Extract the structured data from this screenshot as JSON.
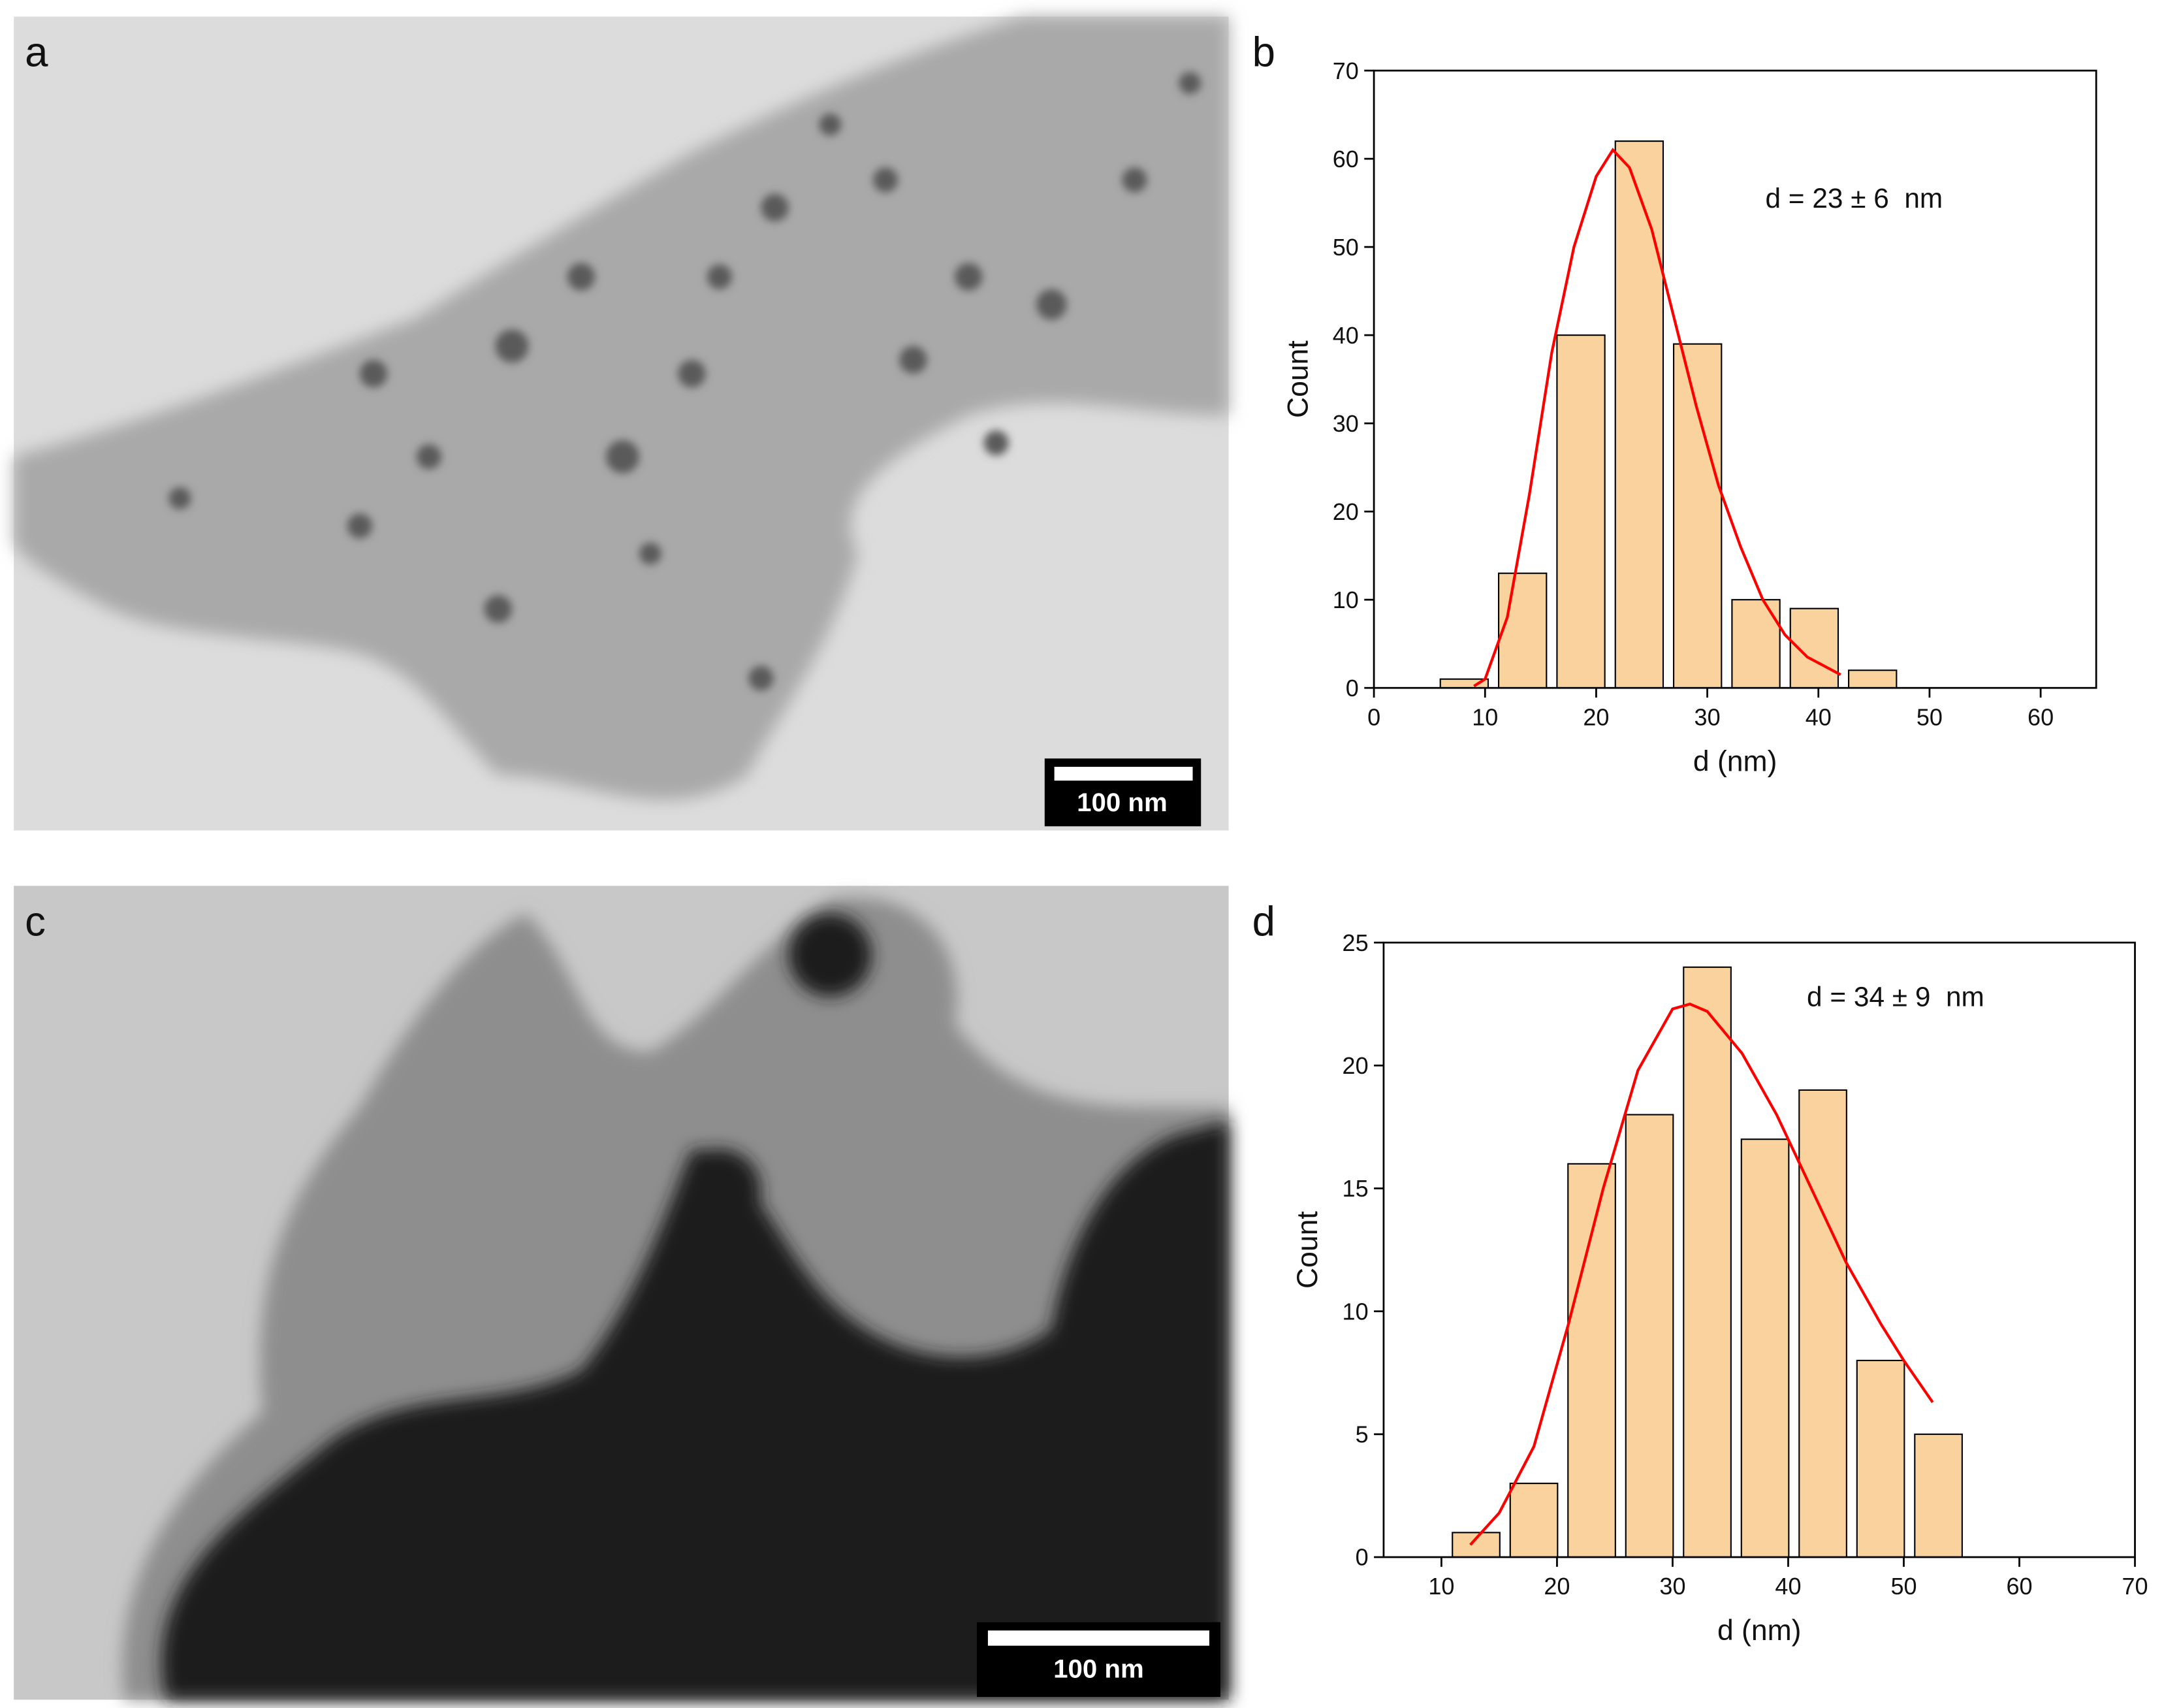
{
  "images": [
    {
      "label": "a",
      "scale_bar": "100 nm"
    },
    {
      "label": "c",
      "scale_bar": "100 nm"
    }
  ],
  "chart_data": [
    {
      "type": "histogram",
      "label": "b",
      "annotation": "d = 23 ± 6  nm",
      "x_label": "d (nm)",
      "y_label": "Count",
      "color": "#f9d29d",
      "bins": [
        5.5,
        10.75,
        16,
        21.25,
        26.5,
        31.75,
        37,
        42.25,
        47.5
      ],
      "values": [
        1,
        13,
        40,
        62,
        39,
        10,
        9,
        2
      ],
      "xlim": [
        0,
        65
      ],
      "xticks": [
        0,
        10,
        20,
        30,
        40,
        50,
        60
      ],
      "ylim": [
        0,
        70
      ],
      "yticks": [
        0,
        10,
        20,
        30,
        40,
        50,
        60,
        70
      ],
      "fit": {
        "color": "#ff0000",
        "x": [
          9,
          10,
          12,
          14,
          16,
          18,
          20,
          21.5,
          23,
          25,
          27,
          29,
          31,
          33,
          35,
          37,
          39,
          42
        ],
        "values": [
          0.2,
          1,
          8,
          22,
          38,
          50,
          58,
          61,
          59,
          52,
          42,
          32,
          23,
          16,
          10,
          6,
          3.5,
          1.5
        ]
      }
    },
    {
      "type": "histogram",
      "label": "d",
      "annotation": "d = 34 ± 9  nm",
      "x_label": "d (nm)",
      "y_label": "Count",
      "color": "#f9d29d",
      "bins": [
        10.5,
        15.5,
        20.5,
        25.5,
        30.5,
        35.5,
        40.5,
        45.5,
        50.5,
        55.5
      ],
      "values": [
        1,
        3,
        16,
        18,
        24,
        17,
        19,
        8,
        5
      ],
      "xlim": [
        5,
        70
      ],
      "xticks": [
        10,
        20,
        30,
        40,
        50,
        60,
        70
      ],
      "ylim": [
        0,
        25
      ],
      "yticks": [
        0,
        5,
        10,
        15,
        20,
        25
      ],
      "fit": {
        "color": "#ff0000",
        "x": [
          12.5,
          15,
          18,
          21,
          24,
          27,
          30,
          31.5,
          33,
          36,
          39,
          42,
          45,
          48,
          50,
          52.5
        ],
        "values": [
          0.5,
          1.8,
          4.5,
          9.5,
          15,
          19.8,
          22.3,
          22.5,
          22.2,
          20.5,
          18,
          15,
          12,
          9.5,
          8,
          6.3
        ]
      }
    }
  ]
}
